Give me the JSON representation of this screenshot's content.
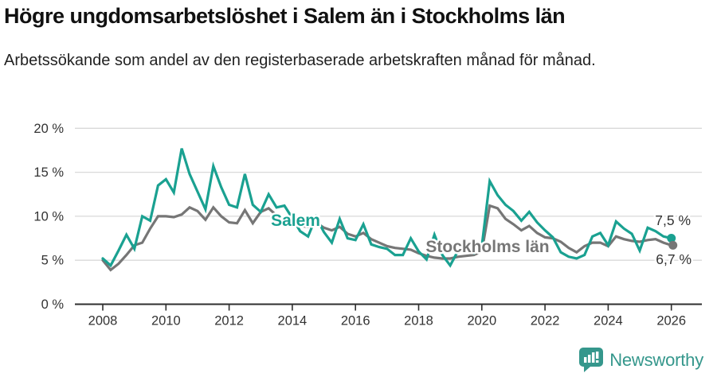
{
  "header": {
    "title": "Högre ungdomsarbetslöshet i Salem än i Stockholms län",
    "subtitle": "Arbetssökande som andel av den registerbaserade arbetskraften månad för månad."
  },
  "chart_data": {
    "type": "line",
    "title": "Högre ungdomsarbetslöshet i Salem än i Stockholms län",
    "xlabel": "",
    "ylabel": "%",
    "ylim": [
      0,
      20
    ],
    "grid": true,
    "y_ticks": [
      0,
      5,
      10,
      15,
      20
    ],
    "y_tick_suffix": " %",
    "x_ticks": [
      2008,
      2010,
      2012,
      2014,
      2016,
      2018,
      2020,
      2022,
      2024,
      2026
    ],
    "x_start": 2008.0,
    "x_step": 0.25,
    "x_end": 2026.0,
    "legend_position": "inline-labels",
    "series": [
      {
        "name": "Salem",
        "color": "#1aa191",
        "end_label": "7,5 %",
        "end_value": 7.5,
        "values": [
          5.2,
          4.4,
          6.1,
          7.9,
          6.3,
          10.0,
          9.5,
          13.5,
          14.2,
          12.7,
          17.7,
          14.8,
          12.8,
          10.8,
          15.7,
          13.3,
          11.3,
          11.0,
          14.8,
          11.3,
          10.5,
          12.5,
          11.0,
          11.2,
          9.8,
          8.3,
          7.7,
          9.9,
          8.2,
          7.0,
          9.7,
          7.5,
          7.3,
          9.1,
          6.8,
          6.5,
          6.3,
          5.6,
          5.6,
          7.5,
          6.0,
          5.1,
          7.9,
          5.6,
          4.4,
          6.1,
          6.4,
          5.8,
          6.6,
          14.0,
          12.4,
          11.3,
          10.6,
          9.5,
          10.5,
          9.3,
          8.4,
          7.6,
          5.9,
          5.4,
          5.2,
          5.6,
          7.7,
          8.1,
          6.7,
          9.4,
          8.6,
          8.0,
          6.1,
          8.7,
          8.3,
          7.7,
          7.5
        ]
      },
      {
        "name": "Stockholms län",
        "color": "#767676",
        "end_label": "6,7 %",
        "end_value": 6.7,
        "values": [
          5.0,
          3.9,
          4.6,
          5.6,
          6.7,
          7.0,
          8.6,
          10.0,
          10.0,
          9.9,
          10.2,
          11.0,
          10.6,
          9.6,
          11.0,
          10.0,
          9.3,
          9.2,
          10.7,
          9.2,
          10.5,
          10.9,
          10.1,
          9.3,
          9.2,
          8.9,
          8.8,
          9.3,
          8.7,
          8.4,
          8.8,
          8.0,
          7.7,
          8.1,
          7.4,
          7.0,
          6.6,
          6.4,
          6.3,
          6.2,
          5.8,
          5.5,
          5.3,
          5.2,
          5.2,
          5.4,
          5.5,
          5.6,
          6.0,
          11.2,
          10.9,
          9.7,
          9.1,
          8.4,
          8.9,
          8.1,
          7.6,
          7.5,
          7.1,
          6.4,
          5.9,
          6.6,
          7.0,
          7.0,
          6.6,
          7.7,
          7.4,
          7.2,
          7.1,
          7.3,
          7.4,
          7.0,
          6.7
        ]
      }
    ]
  },
  "footer": {
    "brand": "Newsworthy"
  },
  "colors": {
    "salem_line": "#1aa191",
    "stockholm_line": "#767676",
    "gridline": "#d9d9d9",
    "axis": "#2e2e2e",
    "axis_text": "#333333",
    "title_text": "#111111",
    "logo_teal": "#35978c"
  }
}
